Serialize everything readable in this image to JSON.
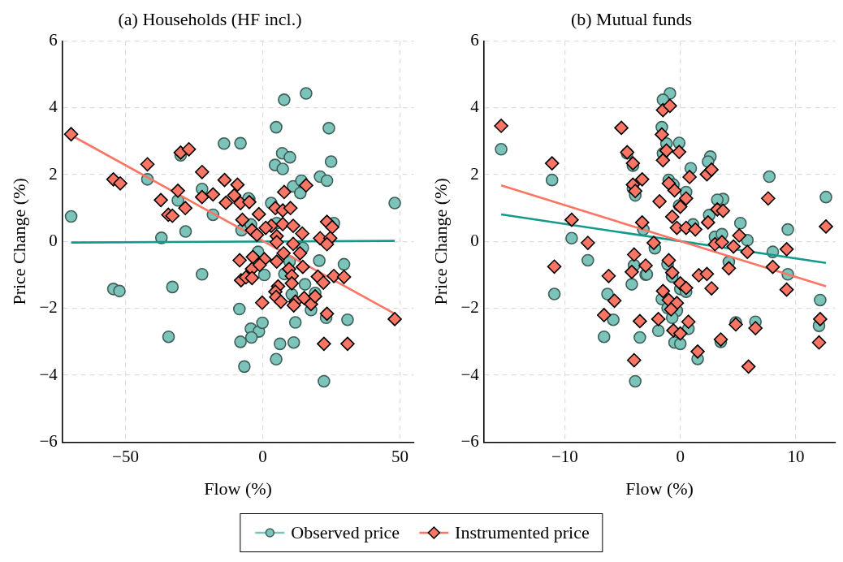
{
  "chart_data": [
    {
      "type": "scatter",
      "title": "(a) Households (HF incl.)",
      "xlabel": "Flow (%)",
      "ylabel": "Price Change (%)",
      "xlim": [
        -73,
        55
      ],
      "ylim": [
        -6,
        6
      ],
      "xticks": [
        {
          "value": -50,
          "label": "−50"
        },
        0,
        50
      ],
      "yticks": [
        {
          "value": -6,
          "label": "−6"
        },
        {
          "value": -4,
          "label": "−4"
        },
        {
          "value": -2,
          "label": "−2"
        },
        0,
        2,
        4,
        6
      ],
      "grid": true,
      "legend": "bottom",
      "series": [
        {
          "type": "scatter",
          "name": "Observed price",
          "color": "#7cc4ba",
          "marker": "circle",
          "x": [
            -69.8,
            -14.1,
            -8.1,
            -42,
            -22.1,
            -30.9,
            -18.1,
            -28.1,
            -36.9,
            -29.9,
            -54.4,
            -52.2,
            -32.9,
            -22.1,
            -34.3,
            -8.5,
            -4.3,
            -1.4,
            -4.1,
            -8.1,
            -6.7,
            -0.1,
            -7.7,
            -4.9,
            -1.7,
            0.6,
            -4.3,
            15.8,
            7.8,
            4.9,
            24.1,
            7.1,
            9.9,
            4.5,
            7.3,
            24.9,
            20.9,
            23.4,
            48.1,
            11.1,
            13.7,
            14.1,
            3.1,
            -5.2,
            25.9,
            5.1,
            14.6,
            20.6,
            29.6,
            9.8,
            7.9,
            15.4,
            10.6,
            17.6,
            19.1,
            23.1,
            30.9,
            11.9,
            6.3,
            11.3,
            4.9,
            22.3
          ],
          "values": [
            0.75,
            2.93,
            2.94,
            1.86,
            1.57,
            1.23,
            0.8,
            0.3,
            0.11,
            2.58,
            -1.42,
            -1.48,
            -1.36,
            -0.98,
            -2.85,
            -2.02,
            -2.61,
            -2.69,
            -2.87,
            -3.0,
            -3.74,
            -2.43,
            0.34,
            1.26,
            -0.31,
            -1.0,
            0.51,
            4.43,
            4.24,
            3.42,
            3.39,
            2.64,
            2.52,
            2.29,
            2.17,
            2.39,
            1.94,
            1.82,
            1.15,
            1.65,
            1.45,
            1.82,
            1.15,
            1.29,
            0.55,
            0.55,
            -0.19,
            -0.57,
            -0.68,
            -0.6,
            -0.97,
            -1.28,
            -1.58,
            -2.05,
            -1.54,
            -2.28,
            -2.34,
            -2.42,
            -3.06,
            -3.02,
            -3.52,
            -4.18
          ]
        },
        {
          "type": "line",
          "color": "#14998a",
          "x": [
            -69.8,
            48.1
          ],
          "values": [
            -0.03,
            0.02
          ]
        },
        {
          "type": "line",
          "color": "#fa7564",
          "x": [
            -69.8,
            48.1
          ],
          "values": [
            3.18,
            -2.16
          ]
        },
        {
          "type": "scatter",
          "name": "Instrumented price",
          "color": "#fa7564",
          "marker": "diamond",
          "x": [
            -69.8,
            -29.9,
            -26.9,
            -42,
            -54.4,
            -51.9,
            -22.1,
            -13.9,
            -9.2,
            -10.4,
            -18.1,
            -22.1,
            -30.9,
            -37.1,
            -28.2,
            -34.4,
            -32.9,
            -13.4,
            -8.1,
            -4.9,
            -1.4,
            -7.4,
            -3.9,
            -2.1,
            -8.4,
            -3.6,
            0.6,
            -3.9,
            -7.9,
            -6.1,
            -3.9,
            -0.2,
            7.8,
            15.8,
            4.6,
            7.3,
            10.1,
            23.4,
            25.3,
            3.1,
            7.3,
            11.1,
            14.4,
            1.1,
            5.1,
            5.1,
            11.1,
            20.9,
            24.6,
            23.4,
            7.6,
            13.6,
            5.1,
            14.6,
            9.6,
            -1.1,
            10.6,
            20.1,
            22.1,
            25.9,
            29.6,
            10.6,
            5.6,
            4.6,
            4.9,
            6.6,
            11.9,
            15.1,
            17.6,
            19.1,
            11.3,
            23.4,
            48.1,
            22.3,
            30.9
          ],
          "values": [
            3.21,
            2.66,
            2.76,
            2.31,
            1.86,
            1.74,
            2.08,
            1.84,
            1.7,
            1.38,
            1.41,
            1.33,
            1.52,
            1.24,
            1.0,
            0.8,
            0.77,
            1.16,
            1.15,
            1.18,
            0.82,
            0.65,
            0.34,
            0.2,
            -0.56,
            -0.46,
            -0.53,
            -0.82,
            -1.16,
            -1.07,
            -1.09,
            -1.83,
            1.48,
            1.68,
            1.0,
            0.93,
            1.0,
            0.59,
            0.43,
            0.47,
            0.52,
            0.47,
            0.24,
            0.41,
            0.16,
            -0.02,
            -0.07,
            0.1,
            0.1,
            -0.08,
            -0.35,
            -0.35,
            -0.6,
            -0.76,
            -0.82,
            -0.7,
            -1.03,
            -1.05,
            -1.23,
            -1.03,
            -1.06,
            -1.25,
            -1.34,
            -1.5,
            -1.66,
            -1.8,
            -1.8,
            -1.69,
            -1.87,
            -1.64,
            -1.91,
            -2.16,
            -2.32,
            -3.06,
            -3.06
          ]
        }
      ]
    },
    {
      "type": "scatter",
      "title": "(b) Mutual funds",
      "xlabel": "Flow (%)",
      "ylabel": "Price Change (%)",
      "xlim": [
        -17,
        13.4
      ],
      "ylim": [
        -6,
        6
      ],
      "xticks": [
        {
          "value": -10,
          "label": "−10"
        },
        0,
        10
      ],
      "yticks": [
        {
          "value": -6,
          "label": "−6"
        },
        {
          "value": -4,
          "label": "−4"
        },
        {
          "value": -2,
          "label": "−2"
        },
        0,
        2,
        4,
        6
      ],
      "grid": true,
      "series": [
        {
          "type": "scatter",
          "color": "#7cc4ba",
          "marker": "circle",
          "x": [
            -15.5,
            -11.1,
            -10.9,
            -9.4,
            -8.0,
            -6.3,
            -5.8,
            -6.6,
            -4.6,
            -4.1,
            -4.1,
            -3.9,
            -3.2,
            -4.0,
            -4.2,
            -3.0,
            -3.5,
            -3.9,
            -0.9,
            -1.5,
            -1.6,
            -0.1,
            -1.2,
            -1.5,
            2.6,
            2.4,
            0.9,
            7.7,
            -1.0,
            -0.6,
            0.5,
            12.6,
            3.7,
            3.2,
            -0.1,
            2.5,
            5.2,
            1.1,
            9.3,
            3.0,
            3.6,
            5.8,
            8.0,
            -2.2,
            -1.1,
            4.2,
            9.3,
            -2.9,
            -0.7,
            0.0,
            0.5,
            -1.6,
            -1.1,
            -0.3,
            -0.7,
            0.7,
            -1.9,
            -0.5,
            0.0,
            1.5,
            3.5,
            4.8,
            6.5,
            12.1,
            12.0
          ],
          "values": [
            2.76,
            1.84,
            -1.57,
            0.1,
            -0.56,
            -1.57,
            -2.34,
            -2.85,
            2.64,
            2.27,
            1.59,
            1.38,
            0.36,
            -0.71,
            -1.28,
            -0.99,
            -2.87,
            -4.18,
            4.43,
            4.24,
            3.42,
            2.95,
            2.93,
            2.64,
            2.54,
            2.39,
            2.19,
            1.94,
            1.84,
            1.7,
            1.48,
            1.33,
            1.27,
            1.25,
            1.08,
            0.79,
            0.55,
            0.51,
            0.36,
            0.14,
            0.22,
            0.04,
            -0.31,
            -0.2,
            -0.68,
            -0.61,
            -0.98,
            -0.98,
            -1.05,
            -1.42,
            -1.5,
            -1.72,
            -1.99,
            -2.07,
            -2.28,
            -2.61,
            -2.67,
            -3.02,
            -3.06,
            -3.51,
            -3.0,
            -2.42,
            -2.4,
            -1.75,
            -2.52
          ]
        },
        {
          "type": "line",
          "color": "#14998a",
          "x": [
            -15.5,
            12.6
          ],
          "values": [
            0.81,
            -0.64
          ]
        },
        {
          "type": "line",
          "color": "#fa7564",
          "x": [
            -15.5,
            12.6
          ],
          "values": [
            1.68,
            -1.34
          ]
        },
        {
          "type": "scatter",
          "color": "#fa7564",
          "marker": "diamond",
          "x": [
            -15.5,
            -11.1,
            -10.9,
            -9.4,
            -8.0,
            -5.1,
            -4.6,
            -4.1,
            -3.3,
            -4.1,
            -3.9,
            -3.3,
            -4.0,
            -4.2,
            -3.0,
            -6.2,
            -5.7,
            -6.6,
            -3.5,
            -4.0,
            -1.5,
            -0.9,
            -1.6,
            -1.2,
            -0.1,
            -1.5,
            0.8,
            2.3,
            2.7,
            7.6,
            -1.0,
            -0.5,
            -1.8,
            0.5,
            0.0,
            3.2,
            3.7,
            -0.7,
            12.6,
            -0.3,
            0.5,
            1.3,
            2.4,
            5.1,
            -2.3,
            3.0,
            3.6,
            4.6,
            5.8,
            9.2,
            -1.0,
            8.0,
            4.2,
            -0.7,
            1.6,
            2.3,
            0.0,
            0.5,
            2.7,
            9.2,
            -1.5,
            -1.0,
            -0.3,
            -0.8,
            -1.9,
            0.7,
            -0.6,
            0.0,
            4.8,
            6.5,
            12.1,
            12.0,
            3.5,
            1.5,
            5.9
          ],
          "values": [
            3.46,
            2.34,
            -0.75,
            0.65,
            -0.04,
            3.4,
            2.67,
            2.34,
            1.86,
            1.7,
            1.51,
            0.57,
            -0.39,
            -0.91,
            -0.72,
            -1.03,
            -1.77,
            -2.2,
            -2.38,
            -3.55,
            3.93,
            4.06,
            3.2,
            2.72,
            2.68,
            2.43,
            1.93,
            2.01,
            2.15,
            1.29,
            1.74,
            1.53,
            1.2,
            1.29,
            1.04,
            0.96,
            0.92,
            0.74,
            0.45,
            0.41,
            0.41,
            0.36,
            0.57,
            0.18,
            -0.04,
            -0.08,
            -0.02,
            -0.15,
            -0.31,
            -0.23,
            -0.56,
            -0.76,
            -0.8,
            -0.93,
            -1.01,
            -0.97,
            -1.25,
            -1.39,
            -1.4,
            -1.44,
            -1.48,
            -1.75,
            -1.84,
            -2.03,
            -2.32,
            -2.4,
            -2.66,
            -2.75,
            -2.48,
            -2.59,
            -2.32,
            -3.02,
            -2.93,
            -3.29,
            -3.74
          ]
        }
      ]
    }
  ]
}
